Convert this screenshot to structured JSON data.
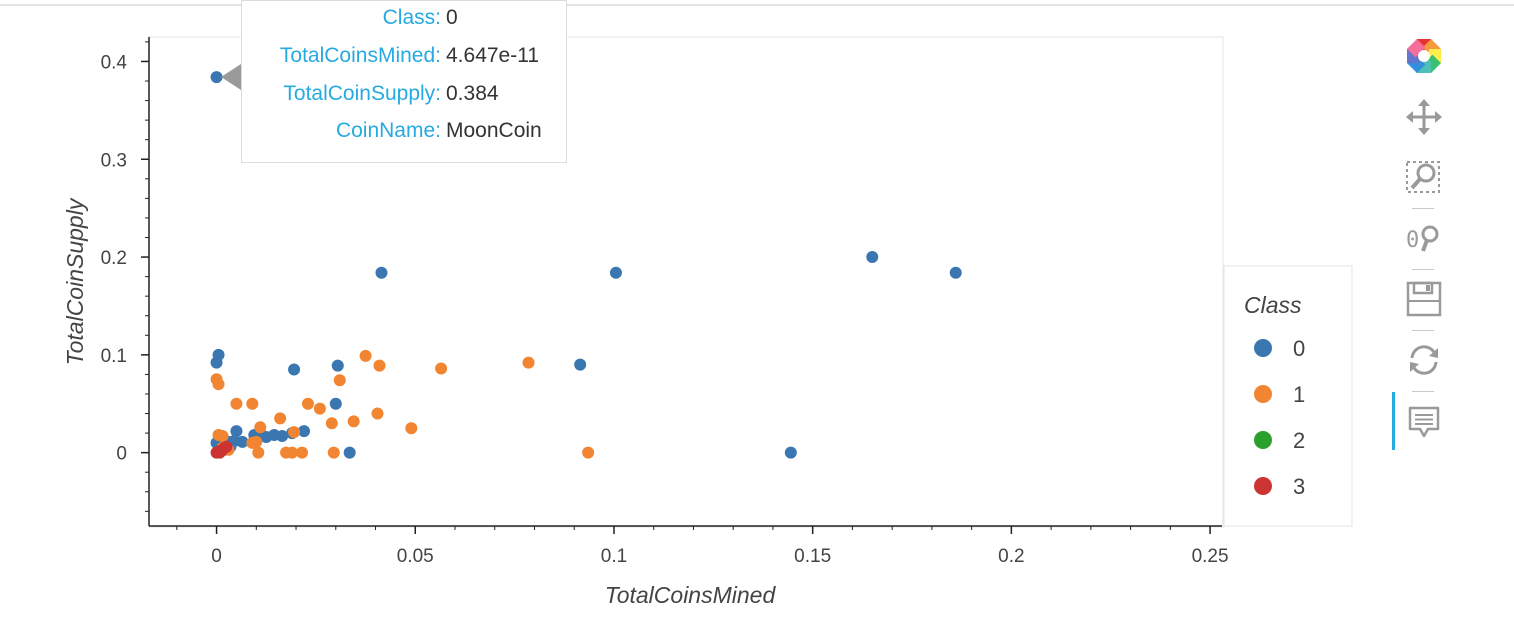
{
  "chart_data": {
    "type": "scatter",
    "xlabel": "TotalCoinsMined",
    "ylabel": "TotalCoinSupply",
    "xlim": [
      -0.017,
      0.253
    ],
    "ylim": [
      -0.075,
      0.425
    ],
    "x_ticks": [
      0,
      0.05,
      0.1,
      0.15,
      0.2,
      0.25
    ],
    "x_tick_labels": [
      "0",
      "0.05",
      "0.1",
      "0.15",
      "0.2",
      "0.25"
    ],
    "y_ticks": [
      0,
      0.1,
      0.2,
      0.3,
      0.4
    ],
    "y_tick_labels": [
      "0",
      "0.1",
      "0.2",
      "0.3",
      "0.4"
    ],
    "grid": false,
    "legend": {
      "title": "Class",
      "placement": "right",
      "entries": [
        {
          "label": "0",
          "color": "#1f77b4"
        },
        {
          "label": "1",
          "color": "#ff7f0e"
        },
        {
          "label": "2",
          "color": "#2ca02c"
        },
        {
          "label": "3",
          "color": "#d62728"
        }
      ]
    },
    "series": [
      {
        "name": "0",
        "color": "#3a77b0",
        "points": [
          [
            0.0,
            0.384
          ],
          [
            0.029,
            0.315
          ],
          [
            0.0415,
            0.184
          ],
          [
            0.1005,
            0.184
          ],
          [
            0.165,
            0.2
          ],
          [
            0.186,
            0.184
          ],
          [
            0.0005,
            0.1
          ],
          [
            0.0,
            0.092
          ],
          [
            0.0195,
            0.085
          ],
          [
            0.0305,
            0.089
          ],
          [
            0.0915,
            0.09
          ],
          [
            0.03,
            0.05
          ],
          [
            0.005,
            0.022
          ],
          [
            0.0095,
            0.018
          ],
          [
            0.011,
            0.02
          ],
          [
            0.0125,
            0.016
          ],
          [
            0.0145,
            0.018
          ],
          [
            0.0165,
            0.017
          ],
          [
            0.019,
            0.02
          ],
          [
            0.022,
            0.022
          ],
          [
            0.0065,
            0.011
          ],
          [
            0.0045,
            0.012
          ],
          [
            0.003,
            0.011
          ],
          [
            0.001,
            0.006
          ],
          [
            0.002,
            0.003
          ],
          [
            0.0335,
            0.0
          ],
          [
            0.1445,
            0.0
          ],
          [
            0.0,
            0.01
          ],
          [
            0.0035,
            0.006
          ]
        ]
      },
      {
        "name": "1",
        "color": "#f18532",
        "points": [
          [
            0.0,
            0.075
          ],
          [
            0.0005,
            0.07
          ],
          [
            0.0375,
            0.099
          ],
          [
            0.041,
            0.089
          ],
          [
            0.0565,
            0.086
          ],
          [
            0.0785,
            0.092
          ],
          [
            0.031,
            0.074
          ],
          [
            0.005,
            0.05
          ],
          [
            0.009,
            0.05
          ],
          [
            0.023,
            0.05
          ],
          [
            0.026,
            0.045
          ],
          [
            0.016,
            0.035
          ],
          [
            0.029,
            0.03
          ],
          [
            0.0345,
            0.032
          ],
          [
            0.0405,
            0.04
          ],
          [
            0.049,
            0.025
          ],
          [
            0.011,
            0.026
          ],
          [
            0.0195,
            0.021
          ],
          [
            0.0005,
            0.018
          ],
          [
            0.0015,
            0.017
          ],
          [
            0.01,
            0.011
          ],
          [
            0.009,
            0.01
          ],
          [
            0.0175,
            0.0
          ],
          [
            0.019,
            0.0
          ],
          [
            0.0215,
            0.0
          ],
          [
            0.0295,
            0.0
          ],
          [
            0.0935,
            0.0
          ],
          [
            0.0105,
            0.0
          ],
          [
            0.0015,
            0.005
          ],
          [
            0.003,
            0.003
          ]
        ]
      },
      {
        "name": "2",
        "color": "#2ca02c",
        "points": []
      },
      {
        "name": "3",
        "color": "#cc3333",
        "points": [
          [
            0.0,
            0.0
          ],
          [
            0.0005,
            0.001
          ],
          [
            0.001,
            0.002
          ],
          [
            0.0015,
            0.003
          ],
          [
            0.002,
            0.005
          ],
          [
            0.0025,
            0.006
          ],
          [
            0.0008,
            0.0
          ]
        ]
      }
    ]
  },
  "tooltip": {
    "rows": [
      {
        "key": "Class:",
        "value": "0"
      },
      {
        "key": "TotalCoinsMined:",
        "value": "4.647e-11"
      },
      {
        "key": "TotalCoinSupply:",
        "value": "0.384"
      },
      {
        "key": "CoinName:",
        "value": "MoonCoin"
      }
    ]
  },
  "toolbar": {
    "tools": [
      "bokeh-logo-icon",
      "pan-icon",
      "box-zoom-icon",
      "wheel-zoom-icon",
      "save-icon",
      "reset-icon",
      "hover-icon"
    ],
    "active": "hover-icon"
  }
}
